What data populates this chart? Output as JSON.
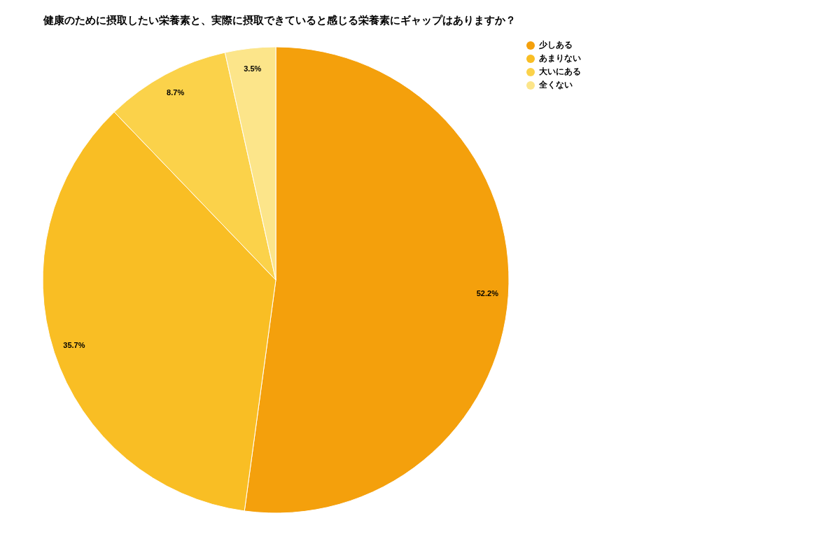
{
  "chart_data": {
    "type": "pie",
    "title": "健康のために摂取したい栄養素と、実際に摂取できていると感じる栄養素にギャップはありますか？",
    "categories": [
      "少しある",
      "あまりない",
      "大いにある",
      "全くない"
    ],
    "values": [
      52.2,
      35.7,
      8.7,
      3.5
    ],
    "colors": [
      "#f4a00c",
      "#f9be24",
      "#fbd24a",
      "#fce58a"
    ],
    "value_labels": [
      "52.2%",
      "35.7%",
      "8.7%",
      "3.5%"
    ],
    "legend": "top right"
  }
}
